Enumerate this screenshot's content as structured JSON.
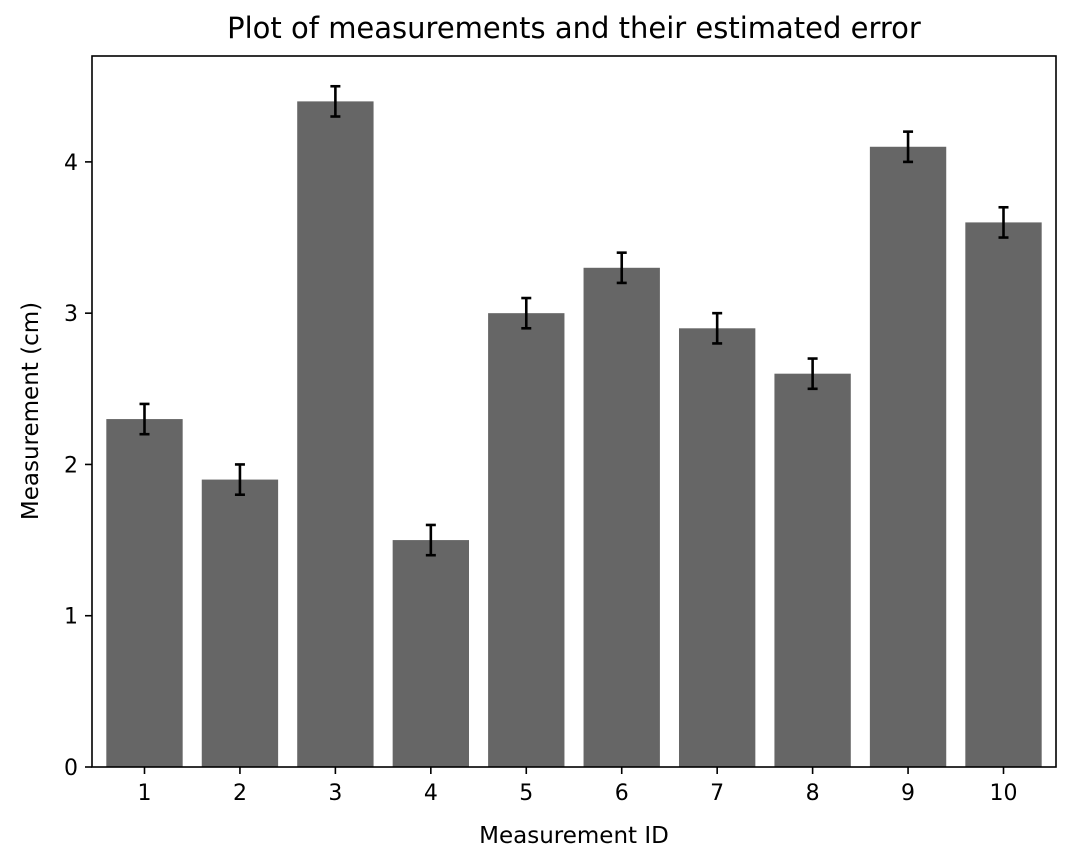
{
  "chart_data": {
    "type": "bar",
    "title": "Plot of measurements and their estimated error",
    "xlabel": "Measurement ID",
    "ylabel": "Measurement (cm)",
    "categories": [
      "1",
      "2",
      "3",
      "4",
      "5",
      "6",
      "7",
      "8",
      "9",
      "10"
    ],
    "values": [
      2.3,
      1.9,
      4.4,
      1.5,
      3.0,
      3.3,
      2.9,
      2.6,
      4.1,
      3.6
    ],
    "errors": [
      0.1,
      0.1,
      0.1,
      0.1,
      0.1,
      0.1,
      0.1,
      0.1,
      0.1,
      0.1
    ],
    "ylim": [
      0,
      4.7
    ],
    "yticks": [
      "0",
      "1",
      "2",
      "3",
      "4"
    ],
    "grid": false,
    "colors": {
      "bar": "#666666",
      "error": "#000000",
      "axis": "#000000"
    }
  }
}
